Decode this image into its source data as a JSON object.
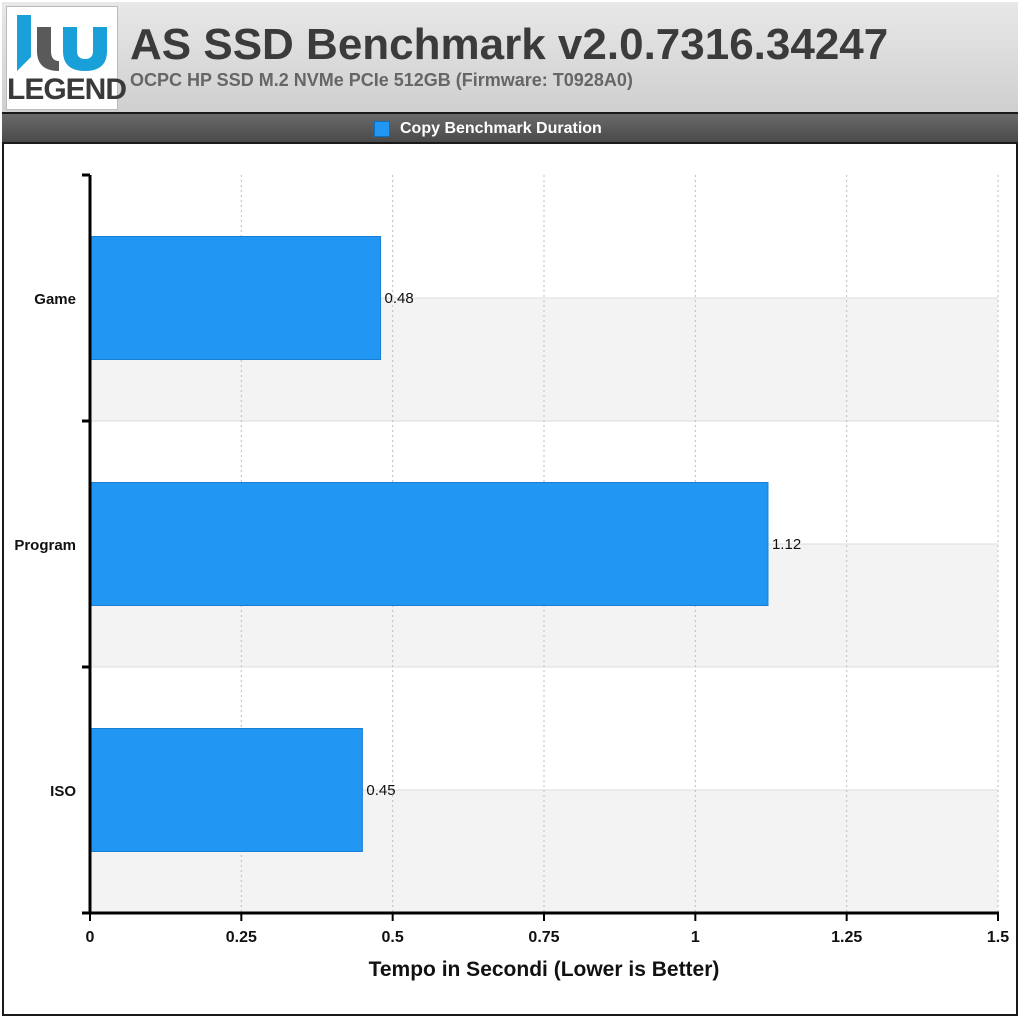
{
  "header": {
    "logo_text": "LEGEND",
    "title": "AS SSD Benchmark v2.0.7316.34247",
    "subtitle": "OCPC HP SSD M.2 NVMe PCIe 512GB (Firmware: T0928A0)"
  },
  "colors": {
    "bar": "#2196f3",
    "bar_border": "#1a7fd4",
    "band": "#f3f3f3",
    "axis": "#000000"
  },
  "chart_data": {
    "type": "bar",
    "orientation": "horizontal",
    "categories": [
      "Game",
      "Program",
      "ISO"
    ],
    "series": [
      {
        "name": "Copy Benchmark Duration",
        "values": [
          0.48,
          1.12,
          0.45
        ]
      }
    ],
    "value_labels": [
      "0.48",
      "1.12",
      "0.45"
    ],
    "xlabel": "Tempo in Secondi (Lower is Better)",
    "ylabel": "",
    "xlim": [
      0,
      1.5
    ],
    "xticks": [
      0,
      0.25,
      0.5,
      0.75,
      1,
      1.25,
      1.5
    ],
    "xtick_labels": [
      "0",
      "0.25",
      "0.5",
      "0.75",
      "1",
      "1.25",
      "1.5"
    ],
    "grid": true,
    "legend_position": "top-center"
  }
}
